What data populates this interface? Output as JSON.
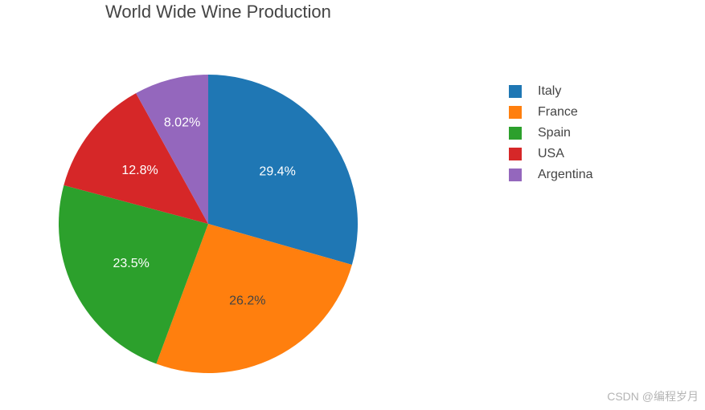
{
  "chart_data": {
    "type": "pie",
    "title": "World Wide Wine Production",
    "labels": [
      "Italy",
      "France",
      "Spain",
      "USA",
      "Argentina"
    ],
    "values": [
      29.4,
      26.2,
      23.5,
      12.8,
      8.02
    ],
    "percent_labels": [
      "29.4%",
      "26.2%",
      "23.5%",
      "12.8%",
      "8.02%"
    ],
    "colors": [
      "#1f77b4",
      "#ff7f0e",
      "#2ca02c",
      "#d62728",
      "#9467bd"
    ],
    "label_colors": [
      "#ffffff",
      "#444444",
      "#ffffff",
      "#ffffff",
      "#ffffff"
    ],
    "direction": "clockwise",
    "start": "top",
    "legend_position": "top-right"
  },
  "watermark": "CSDN @编程岁月"
}
